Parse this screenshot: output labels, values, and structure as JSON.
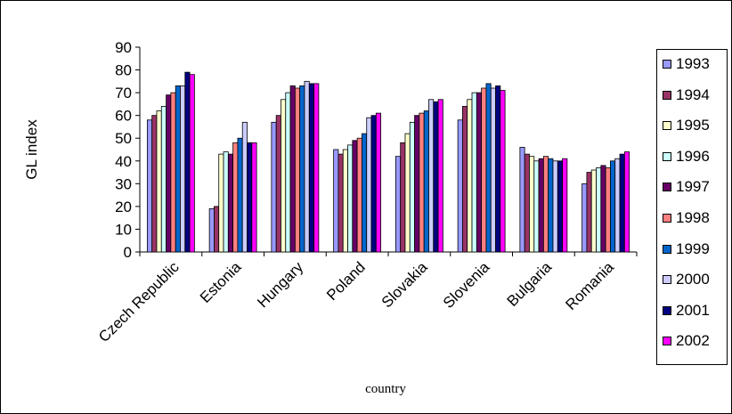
{
  "chart_data": {
    "type": "bar",
    "title": "",
    "xlabel": "country",
    "ylabel": "GL index",
    "ylim": [
      0,
      90
    ],
    "yticks": [
      0,
      10,
      20,
      30,
      40,
      50,
      60,
      70,
      80,
      90
    ],
    "grid": false,
    "legend_position": "right",
    "categories": [
      "Czech Republic",
      "Estonia",
      "Hungary",
      "Poland",
      "Slovakia",
      "Slovenia",
      "Bulgaria",
      "Romania"
    ],
    "series": [
      {
        "name": "1993",
        "color": "#9999FF",
        "values": [
          58,
          19,
          57,
          45,
          42,
          58,
          46,
          30
        ]
      },
      {
        "name": "1994",
        "color": "#993366",
        "values": [
          60,
          20,
          60,
          43,
          48,
          64,
          43,
          35
        ]
      },
      {
        "name": "1995",
        "color": "#FFFFCC",
        "values": [
          62,
          43,
          67,
          45,
          52,
          67,
          42,
          36
        ]
      },
      {
        "name": "1996",
        "color": "#CCFFFF",
        "values": [
          64,
          44,
          70,
          47,
          57,
          70,
          40,
          37
        ]
      },
      {
        "name": "1997",
        "color": "#660066",
        "values": [
          69,
          43,
          73,
          49,
          60,
          70,
          41,
          38
        ]
      },
      {
        "name": "1998",
        "color": "#FF8080",
        "values": [
          70,
          48,
          72,
          50,
          61,
          72,
          42,
          37
        ]
      },
      {
        "name": "1999",
        "color": "#0066CC",
        "values": [
          73,
          50,
          73,
          52,
          62,
          74,
          41,
          40
        ]
      },
      {
        "name": "2000",
        "color": "#CCCCFF",
        "values": [
          73,
          57,
          75,
          59,
          67,
          72,
          40,
          41
        ]
      },
      {
        "name": "2001",
        "color": "#000080",
        "values": [
          79,
          48,
          74,
          60,
          66,
          73,
          40,
          43
        ]
      },
      {
        "name": "2002",
        "color": "#FF00FF",
        "values": [
          78,
          48,
          74,
          61,
          67,
          71,
          41,
          44
        ]
      }
    ]
  }
}
